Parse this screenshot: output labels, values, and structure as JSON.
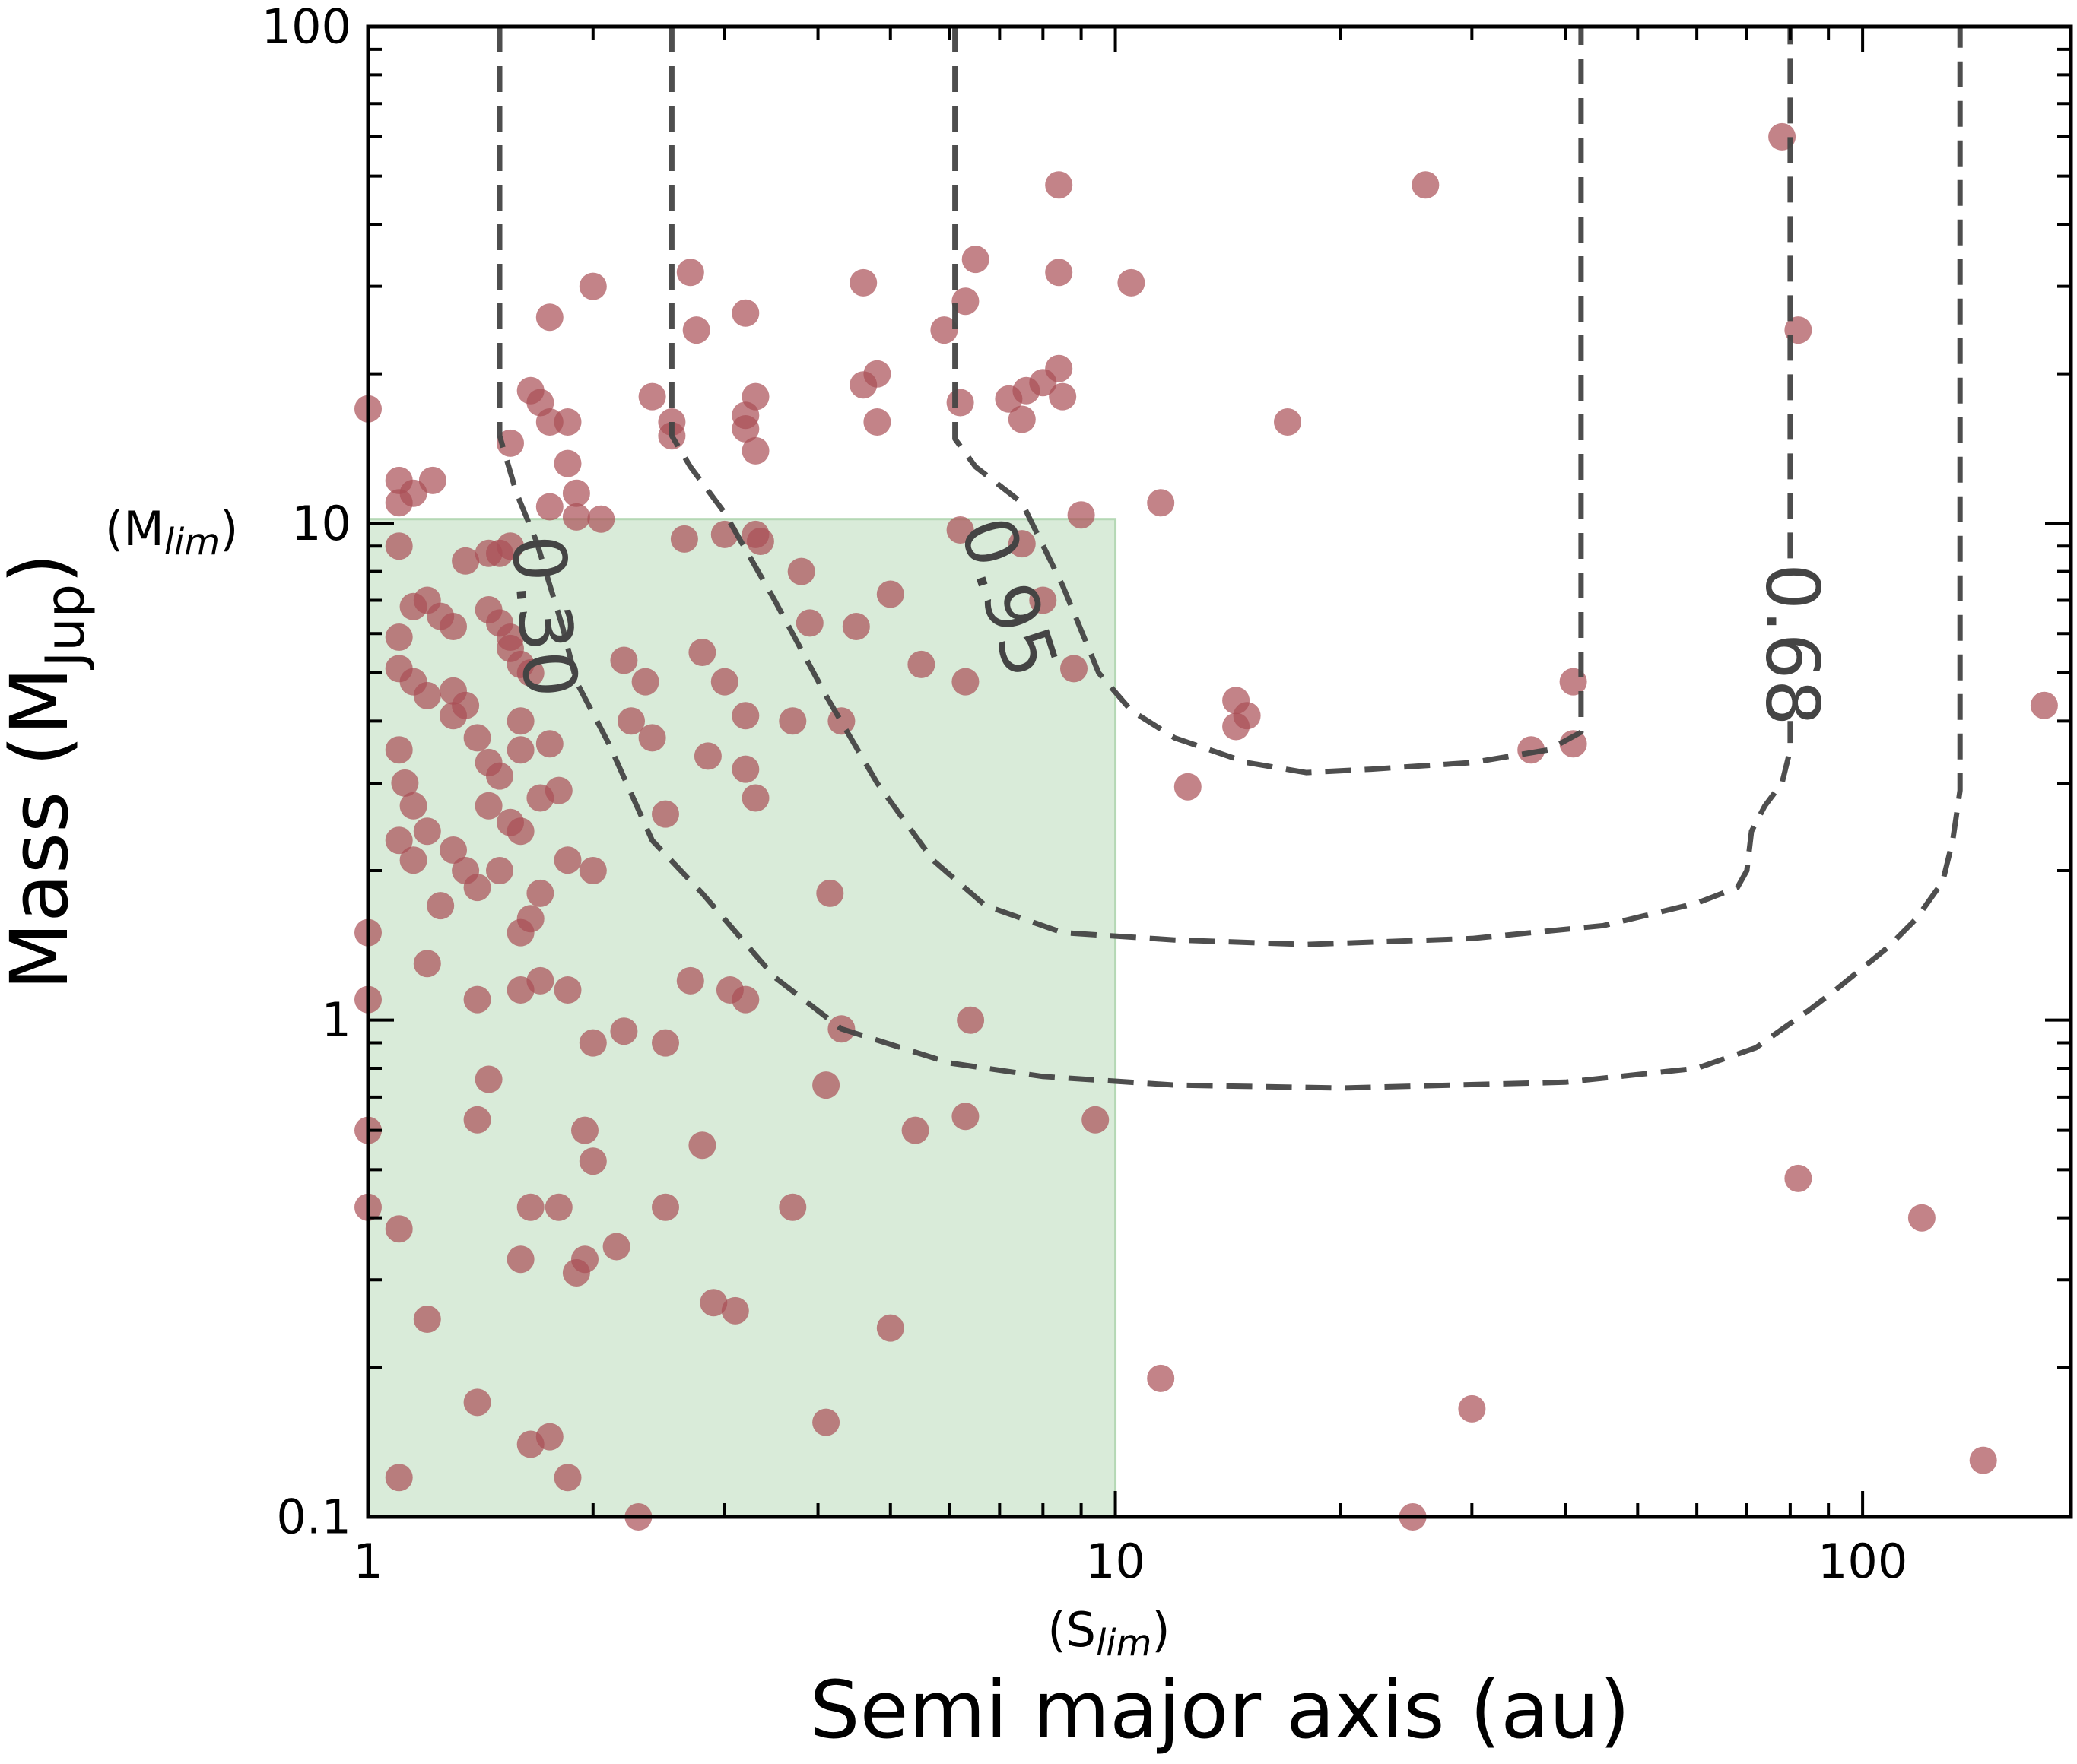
{
  "chart_data": {
    "type": "scatter",
    "xlabel": "Semi major axis (au)",
    "ylabel": "Mass (M",
    "ylabel_sub": "Jup",
    "ylabel_close": ")",
    "x_scale": "log",
    "y_scale": "log",
    "xlim": [
      1,
      190
    ],
    "ylim": [
      0.1,
      100
    ],
    "x_ticks": [
      {
        "value": 1,
        "label": "1"
      },
      {
        "value": 10,
        "label": "10"
      },
      {
        "value": 100,
        "label": "100"
      }
    ],
    "y_ticks": [
      {
        "value": 0.1,
        "label": "0.1"
      },
      {
        "value": 1,
        "label": "1"
      },
      {
        "value": 10,
        "label": "10"
      },
      {
        "value": 100,
        "label": "100"
      }
    ],
    "grid": false,
    "limit_box": {
      "x_range": [
        1,
        10
      ],
      "y_range": [
        0.1,
        10.2
      ],
      "color": "#c9e3c9",
      "x_label_main": "(S",
      "x_label_sub": "lim",
      "x_label_close": ")",
      "y_label_main": "(M",
      "y_label_sub": "lim",
      "y_label_close": ")"
    },
    "colors": {
      "points": "#a94e55",
      "contours": "#444444",
      "box": "#c9e3c9"
    },
    "contours": [
      {
        "label": "0.30",
        "label_at": [
          1.72,
          6.5
        ],
        "label_rotation": 85,
        "points": [
          [
            1.5,
            100
          ],
          [
            1.5,
            15
          ],
          [
            1.58,
            11.5
          ],
          [
            1.68,
            9.2
          ],
          [
            1.82,
            6.2
          ],
          [
            1.9,
            4.8
          ],
          [
            2.1,
            3.6
          ],
          [
            2.4,
            2.3
          ],
          [
            2.8,
            1.8
          ],
          [
            3.5,
            1.22
          ],
          [
            4.3,
            0.96
          ],
          [
            6.0,
            0.82
          ],
          [
            8.0,
            0.77
          ],
          [
            12,
            0.74
          ],
          [
            20,
            0.73
          ],
          [
            40,
            0.75
          ],
          [
            60,
            0.8
          ],
          [
            72,
            0.88
          ],
          [
            85,
            1.05
          ],
          [
            92,
            1.15
          ],
          [
            108,
            1.4
          ],
          [
            118,
            1.6
          ],
          [
            128,
            1.9
          ],
          [
            132,
            2.3
          ],
          [
            135,
            2.9
          ],
          [
            135,
            3.5
          ],
          [
            135,
            100
          ]
        ]
      },
      {
        "label": "0.95",
        "label_at": [
          7.2,
          7.1
        ],
        "label_rotation": 72,
        "points": [
          [
            2.55,
            100
          ],
          [
            2.55,
            15
          ],
          [
            2.7,
            13
          ],
          [
            3.0,
            10.5
          ],
          [
            3.5,
            7
          ],
          [
            4.1,
            4.5
          ],
          [
            4.8,
            3
          ],
          [
            5.7,
            2.1
          ],
          [
            6.7,
            1.7
          ],
          [
            8.5,
            1.5
          ],
          [
            12,
            1.45
          ],
          [
            18,
            1.42
          ],
          [
            30,
            1.46
          ],
          [
            45,
            1.55
          ],
          [
            60,
            1.72
          ],
          [
            68,
            1.85
          ],
          [
            70,
            2.0
          ],
          [
            71,
            2.4
          ],
          [
            74,
            2.7
          ],
          [
            78,
            3.0
          ],
          [
            80,
            3.5
          ],
          [
            80,
            4.0
          ]
        ]
      },
      {
        "label": "0.68",
        "label_at": [
          80.5,
          5.7
        ],
        "label_rotation": 90,
        "points": [
          [
            80,
            8.5
          ],
          [
            80,
            100
          ]
        ]
      },
      {
        "label": "",
        "label_at": null,
        "label_rotation": 0,
        "points": [
          [
            6.1,
            100
          ],
          [
            6.1,
            14.8
          ],
          [
            6.5,
            13
          ],
          [
            7.5,
            11
          ],
          [
            8.5,
            7.5
          ],
          [
            9.5,
            5
          ],
          [
            10.5,
            4.2
          ],
          [
            12,
            3.7
          ],
          [
            15,
            3.3
          ],
          [
            18,
            3.15
          ],
          [
            22,
            3.2
          ],
          [
            30,
            3.3
          ],
          [
            38,
            3.5
          ],
          [
            42,
            3.8
          ],
          [
            42,
            100
          ]
        ]
      }
    ],
    "points": [
      [
        1.0,
        17
      ],
      [
        1.1,
        12.2
      ],
      [
        1.15,
        11.5
      ],
      [
        1.1,
        11
      ],
      [
        1.22,
        12.2
      ],
      [
        1.65,
        18.5
      ],
      [
        1.7,
        17.5
      ],
      [
        1.75,
        16
      ],
      [
        1.75,
        26
      ],
      [
        1.85,
        16
      ],
      [
        1.85,
        13.2
      ],
      [
        1.9,
        11.5
      ],
      [
        1.75,
        10.8
      ],
      [
        1.9,
        10.3
      ],
      [
        2.05,
        10.2
      ],
      [
        1.55,
        14.5
      ],
      [
        2.0,
        30
      ],
      [
        2.4,
        18
      ],
      [
        2.55,
        16
      ],
      [
        2.55,
        15
      ],
      [
        2.7,
        32
      ],
      [
        2.75,
        24.5
      ],
      [
        3.2,
        26.5
      ],
      [
        3.3,
        18
      ],
      [
        3.2,
        16.5
      ],
      [
        3.2,
        15.5
      ],
      [
        3.3,
        14
      ],
      [
        4.6,
        30.5
      ],
      [
        4.6,
        19
      ],
      [
        4.8,
        20
      ],
      [
        4.8,
        16
      ],
      [
        5.9,
        24.5
      ],
      [
        6.2,
        17.5
      ],
      [
        6.3,
        28
      ],
      [
        6.5,
        34
      ],
      [
        7.2,
        17.8
      ],
      [
        7.5,
        16.2
      ],
      [
        7.6,
        18.5
      ],
      [
        8.0,
        19.2
      ],
      [
        8.5,
        18
      ],
      [
        8.4,
        20.5
      ],
      [
        8.4,
        48
      ],
      [
        8.4,
        32
      ],
      [
        10.5,
        30.5
      ],
      [
        11.5,
        11
      ],
      [
        9.0,
        10.4
      ],
      [
        6.2,
        9.7
      ],
      [
        7.5,
        9.1
      ],
      [
        8.0,
        7
      ],
      [
        8.8,
        5.1
      ],
      [
        17,
        16
      ],
      [
        14.5,
        4.4
      ],
      [
        15,
        4.1
      ],
      [
        14.5,
        3.9
      ],
      [
        12.5,
        2.95
      ],
      [
        26,
        48
      ],
      [
        41,
        4.8
      ],
      [
        36,
        3.5
      ],
      [
        41,
        3.6
      ],
      [
        78,
        60
      ],
      [
        82,
        24.5
      ],
      [
        175,
        4.3
      ],
      [
        82,
        0.48
      ],
      [
        120,
        0.4
      ],
      [
        145,
        0.13
      ],
      [
        30,
        0.165
      ],
      [
        25,
        0.1
      ],
      [
        11.5,
        0.19
      ],
      [
        1.1,
        9
      ],
      [
        1.35,
        8.4
      ],
      [
        1.5,
        8.7
      ],
      [
        1.55,
        9.0
      ],
      [
        1.45,
        8.7
      ],
      [
        1.15,
        6.8
      ],
      [
        1.2,
        7.0
      ],
      [
        1.25,
        6.5
      ],
      [
        1.3,
        6.2
      ],
      [
        1.45,
        6.7
      ],
      [
        1.5,
        6.3
      ],
      [
        1.55,
        5.6
      ],
      [
        1.6,
        5.2
      ],
      [
        1.65,
        5.0
      ],
      [
        1.55,
        5.9
      ],
      [
        1.1,
        5.9
      ],
      [
        1.1,
        5.1
      ],
      [
        1.15,
        4.8
      ],
      [
        1.2,
        4.5
      ],
      [
        1.3,
        4.6
      ],
      [
        1.3,
        4.1
      ],
      [
        1.35,
        4.3
      ],
      [
        1.4,
        3.7
      ],
      [
        1.6,
        4.0
      ],
      [
        1.75,
        3.6
      ],
      [
        1.1,
        3.5
      ],
      [
        1.12,
        3.0
      ],
      [
        1.15,
        2.7
      ],
      [
        1.2,
        2.4
      ],
      [
        1.1,
        2.3
      ],
      [
        1.15,
        2.1
      ],
      [
        1.3,
        2.2
      ],
      [
        1.35,
        2.0
      ],
      [
        1.4,
        1.85
      ],
      [
        1.5,
        2.0
      ],
      [
        1.45,
        2.7
      ],
      [
        1.55,
        2.5
      ],
      [
        1.6,
        2.4
      ],
      [
        1.7,
        2.8
      ],
      [
        1.8,
        2.9
      ],
      [
        1.5,
        3.1
      ],
      [
        1.45,
        3.3
      ],
      [
        1.6,
        3.5
      ],
      [
        1.7,
        1.8
      ],
      [
        1.65,
        1.6
      ],
      [
        1.6,
        1.5
      ],
      [
        1.85,
        2.1
      ],
      [
        2.0,
        2.0
      ],
      [
        1.25,
        1.7
      ],
      [
        1.2,
        1.3
      ],
      [
        1.4,
        1.1
      ],
      [
        1.6,
        1.15
      ],
      [
        1.7,
        1.2
      ],
      [
        1.85,
        1.15
      ],
      [
        2.0,
        0.9
      ],
      [
        2.2,
        0.95
      ],
      [
        2.5,
        0.9
      ],
      [
        2.2,
        5.3
      ],
      [
        2.35,
        4.8
      ],
      [
        2.25,
        4.0
      ],
      [
        2.4,
        3.7
      ],
      [
        2.5,
        2.6
      ],
      [
        2.8,
        5.5
      ],
      [
        2.85,
        3.4
      ],
      [
        3.0,
        9.5
      ],
      [
        2.65,
        9.3
      ],
      [
        3.3,
        9.5
      ],
      [
        3.35,
        9.2
      ],
      [
        3.0,
        4.8
      ],
      [
        3.2,
        4.1
      ],
      [
        3.2,
        3.2
      ],
      [
        3.3,
        2.8
      ],
      [
        3.7,
        4.0
      ],
      [
        3.8,
        8.0
      ],
      [
        3.9,
        6.3
      ],
      [
        4.3,
        4.0
      ],
      [
        4.5,
        6.2
      ],
      [
        5.0,
        7.2
      ],
      [
        5.5,
        5.2
      ],
      [
        6.3,
        4.8
      ],
      [
        3.05,
        1.15
      ],
      [
        3.2,
        1.1
      ],
      [
        2.7,
        1.2
      ],
      [
        4.15,
        1.8
      ],
      [
        4.3,
        0.96
      ],
      [
        6.4,
        1.0
      ],
      [
        5.4,
        0.6
      ],
      [
        6.3,
        0.64
      ],
      [
        1.0,
        1.5
      ],
      [
        1.0,
        1.1
      ],
      [
        1.1,
        0.38
      ],
      [
        1.2,
        0.25
      ],
      [
        1.1,
        0.12
      ],
      [
        1.4,
        0.63
      ],
      [
        1.45,
        0.76
      ],
      [
        1.6,
        0.33
      ],
      [
        1.65,
        0.42
      ],
      [
        1.8,
        0.42
      ],
      [
        1.95,
        0.6
      ],
      [
        2.0,
        0.52
      ],
      [
        1.95,
        0.33
      ],
      [
        1.9,
        0.31
      ],
      [
        2.15,
        0.35
      ],
      [
        2.5,
        0.42
      ],
      [
        2.8,
        0.56
      ],
      [
        2.9,
        0.27
      ],
      [
        3.1,
        0.26
      ],
      [
        3.7,
        0.42
      ],
      [
        4.1,
        0.74
      ],
      [
        4.1,
        0.155
      ],
      [
        5.0,
        0.24
      ],
      [
        1.4,
        0.17
      ],
      [
        1.65,
        0.14
      ],
      [
        1.75,
        0.145
      ],
      [
        1.85,
        0.12
      ],
      [
        2.3,
        0.1
      ],
      [
        1.0,
        0.6
      ],
      [
        1.0,
        0.42
      ],
      [
        9.4,
        0.63
      ]
    ]
  }
}
